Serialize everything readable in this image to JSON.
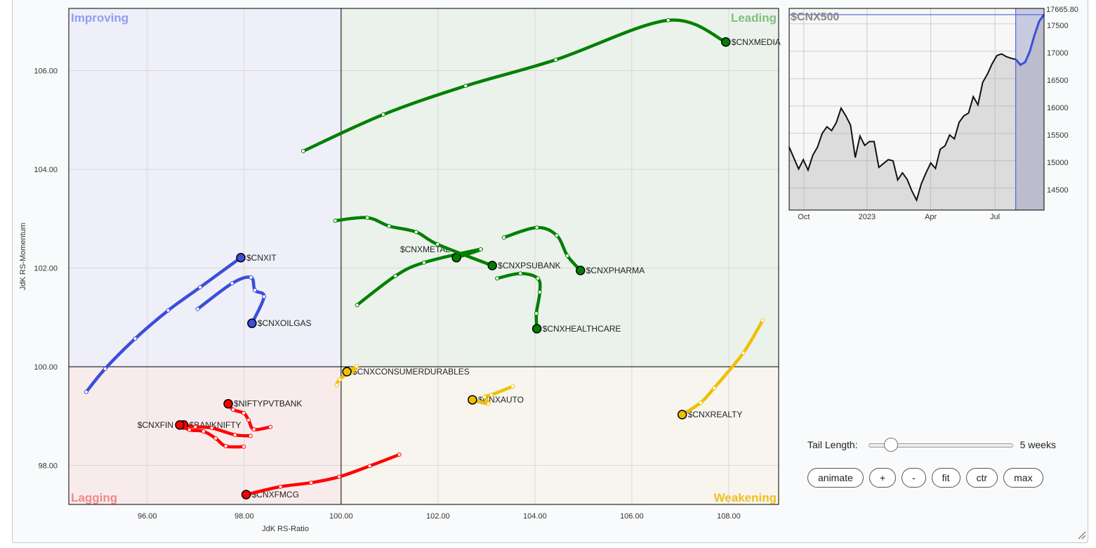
{
  "chart_data": [
    {
      "type": "scatter",
      "subtype": "relative-rotation-graph",
      "xlabel": "JdK RS-Ratio",
      "ylabel": "JdK RS-Momentum",
      "xlim": [
        94.38,
        109.03
      ],
      "ylim": [
        97.21,
        107.26
      ],
      "xticks": [
        "96.00",
        "98.00",
        "100.00",
        "102.00",
        "104.00",
        "106.00",
        "108.00"
      ],
      "yticks": [
        "98.00",
        "100.00",
        "102.00",
        "104.00",
        "106.00"
      ],
      "grid": true,
      "quadrants": {
        "improving": "Improving",
        "leading": "Leading",
        "lagging": "Lagging",
        "weakening": "Weakening"
      },
      "colors": {
        "leading": "#008000",
        "improving": "#3a4fd8",
        "lagging": "#ff0000",
        "weakening": "#f0c000"
      },
      "series": [
        {
          "name": "$CNXMEDIA",
          "quadrant": "leading",
          "x": [
            99.22,
            100.87,
            102.57,
            104.43,
            106.75,
            107.94
          ],
          "y": [
            104.37,
            105.11,
            105.69,
            106.22,
            107.02,
            106.58
          ]
        },
        {
          "name": "$CNXMETAL",
          "quadrant": "leading",
          "x": [
            100.33,
            101.12,
            101.71,
            102.88,
            102.38
          ],
          "y": [
            101.25,
            101.84,
            102.11,
            102.38,
            102.21
          ]
        },
        {
          "name": "$CNXPSUBANK",
          "quadrant": "leading",
          "x": [
            99.88,
            100.54,
            100.99,
            101.55,
            101.99,
            103.12
          ],
          "y": [
            102.96,
            103.02,
            102.85,
            102.73,
            102.48,
            102.05
          ]
        },
        {
          "name": "$CNXPHARMA",
          "quadrant": "leading",
          "x": [
            103.36,
            104.04,
            104.45,
            104.67,
            104.94
          ],
          "y": [
            102.62,
            102.82,
            102.66,
            102.25,
            101.95
          ]
        },
        {
          "name": "$CNXHEALTHCARE",
          "quadrant": "leading",
          "x": [
            103.22,
            103.7,
            104.06,
            104.1,
            104.03,
            104.04
          ],
          "y": [
            101.79,
            101.89,
            101.79,
            101.51,
            101.08,
            100.77
          ]
        },
        {
          "name": "$CNXIT",
          "quadrant": "improving",
          "x": [
            94.74,
            95.13,
            95.75,
            96.43,
            97.09,
            97.93
          ],
          "y": [
            99.49,
            99.96,
            100.57,
            101.14,
            101.61,
            102.21
          ]
        },
        {
          "name": "$CNXOILGAS",
          "quadrant": "improving",
          "x": [
            97.04,
            97.75,
            98.14,
            98.22,
            98.41,
            98.16
          ],
          "y": [
            101.17,
            101.69,
            101.81,
            101.55,
            101.42,
            100.88
          ]
        },
        {
          "name": "$CNXCONSUMERDURABLES",
          "quadrant": "weakening",
          "x": [
            99.91,
            99.97,
            100.32,
            100.2,
            100.12
          ],
          "y": [
            99.63,
            99.74,
            100.01,
            99.87,
            99.9
          ]
        },
        {
          "name": "$CNXAUTO",
          "quadrant": "weakening",
          "x": [
            103.54,
            103.1,
            102.96,
            103.04,
            102.71
          ],
          "y": [
            99.6,
            99.43,
            99.39,
            99.25,
            99.33
          ]
        },
        {
          "name": "$CNXREALTY",
          "quadrant": "weakening",
          "x": [
            108.7,
            108.3,
            107.7,
            107.42,
            107.04
          ],
          "y": [
            100.94,
            100.28,
            99.57,
            99.27,
            99.03
          ]
        },
        {
          "name": "$CNXFMCG",
          "quadrant": "lagging",
          "x": [
            101.2,
            100.59,
            99.96,
            99.38,
            98.75,
            98.04
          ],
          "y": [
            98.22,
            97.99,
            97.77,
            97.65,
            97.57,
            97.41
          ]
        },
        {
          "name": "$NIFTYPVTBANK",
          "quadrant": "lagging",
          "x": [
            98.54,
            98.2,
            98.09,
            97.99,
            97.77,
            97.67
          ],
          "y": [
            98.78,
            98.73,
            98.92,
            99.06,
            99.13,
            99.25
          ]
        },
        {
          "name": "$BANKNIFTY",
          "quadrant": "lagging",
          "x": [
            98.13,
            97.81,
            97.33,
            96.99,
            96.75
          ],
          "y": [
            98.6,
            98.62,
            98.76,
            98.78,
            98.82
          ]
        },
        {
          "name": "$CNXFIN",
          "quadrant": "lagging",
          "x": [
            97.99,
            97.62,
            97.41,
            97.16,
            96.87,
            96.67
          ],
          "y": [
            98.38,
            98.39,
            98.55,
            98.69,
            98.72,
            98.82
          ]
        }
      ]
    },
    {
      "type": "area",
      "title": "$CNX500",
      "last_value": "17665.80",
      "yticks": [
        "14500",
        "15000",
        "15500",
        "16000",
        "16500",
        "17000",
        "17500"
      ],
      "ylim": [
        14100,
        17780
      ],
      "xticks": [
        {
          "label": "Oct",
          "index": 3.1
        },
        {
          "label": "2023",
          "index": 16.5
        },
        {
          "label": "Apr",
          "index": 30
        },
        {
          "label": "Jul",
          "index": 43.6
        }
      ],
      "highlight_start_index": 48,
      "values": [
        15250,
        15050,
        14850,
        15020,
        14830,
        15100,
        15250,
        15500,
        15620,
        15550,
        15700,
        15960,
        15820,
        15650,
        15060,
        15450,
        15280,
        15350,
        15350,
        14880,
        14950,
        15020,
        15000,
        14650,
        14780,
        14660,
        14450,
        14280,
        14580,
        14780,
        14960,
        14860,
        15210,
        15270,
        15470,
        15400,
        15700,
        15820,
        15870,
        16170,
        16020,
        16430,
        16580,
        16770,
        16920,
        16950,
        16900,
        16870,
        16850,
        16750,
        16800,
        17000,
        17300,
        17550,
        17665.8
      ]
    }
  ],
  "controls": {
    "tail_label": "Tail Length:",
    "tail_value": "5 weeks",
    "tail_weeks": 5,
    "tail_fraction": 0.12,
    "buttons": [
      "animate",
      "+",
      "-",
      "fit",
      "ctr",
      "max"
    ]
  }
}
